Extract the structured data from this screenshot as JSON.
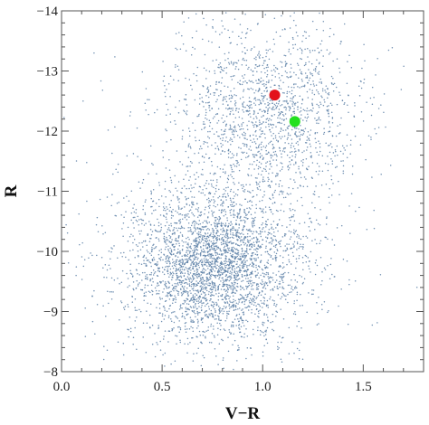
{
  "chart_data": {
    "type": "scatter",
    "title": "",
    "xlabel": "V−R",
    "ylabel": "R",
    "xlim": [
      0.0,
      1.8
    ],
    "ylim": [
      -8,
      -14
    ],
    "y_axis_inverted": true,
    "grid": false,
    "xticks": [
      {
        "value": 0.0,
        "label": "0.0"
      },
      {
        "value": 0.5,
        "label": "0.5"
      },
      {
        "value": 1.0,
        "label": "1.0"
      },
      {
        "value": 1.5,
        "label": "1.5"
      }
    ],
    "yticks": [
      {
        "value": -14,
        "label": "−14"
      },
      {
        "value": -13,
        "label": "−13"
      },
      {
        "value": -12,
        "label": "−12"
      },
      {
        "value": -11,
        "label": "−11"
      },
      {
        "value": -10,
        "label": "−10"
      },
      {
        "value": -9,
        "label": "−9"
      },
      {
        "value": -8,
        "label": "−8"
      }
    ],
    "background_population": {
      "marker_color": "#5b7fa6",
      "approx_count": 5000,
      "density_components": [
        {
          "weight": 0.62,
          "x_mean": 0.76,
          "x_sd": 0.22,
          "y_mean": -9.75,
          "y_sd": 0.62
        },
        {
          "weight": 0.3,
          "x_mean": 1.02,
          "x_sd": 0.22,
          "y_mean": -12.3,
          "y_sd": 0.75
        },
        {
          "weight": 0.08,
          "x_mean": 0.85,
          "x_sd": 0.38,
          "y_mean": -10.8,
          "y_sd": 1.4
        }
      ]
    },
    "series": [
      {
        "color": "#e3121b",
        "points": [
          {
            "x": 1.06,
            "y": -12.6
          }
        ]
      },
      {
        "color": "#22e01f",
        "points": [
          {
            "x": 1.16,
            "y": -12.16
          }
        ]
      }
    ]
  }
}
